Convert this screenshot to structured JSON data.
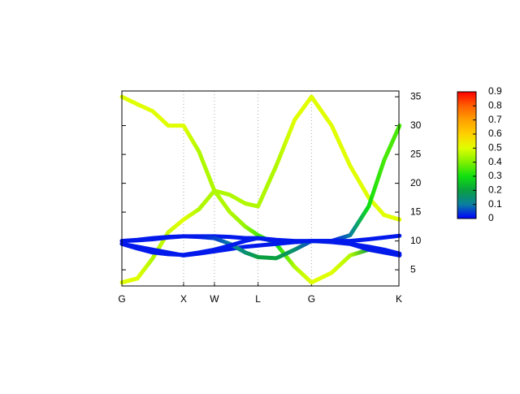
{
  "chart_data": {
    "type": "line",
    "x": [
      0,
      0.25,
      0.5,
      0.75,
      1,
      1.25,
      1.5,
      1.75,
      2,
      2.207,
      2.5,
      2.8,
      3.073,
      3.4,
      3.7,
      4,
      4.25,
      4.5
    ],
    "series": [
      {
        "values": [
          35,
          33.7,
          32.5,
          30,
          30,
          25.5,
          18.7,
          15,
          12.5,
          11,
          9.5,
          5.5,
          2.8,
          4.5,
          7.5,
          8.5,
          8,
          7.6
        ],
        "weights": [
          0.5,
          0.5,
          0.5,
          0.5,
          0.5,
          0.45,
          0.45,
          0.45,
          0.42,
          0.35,
          0.3,
          0.45,
          0.5,
          0.5,
          0.45,
          0.2,
          0.05,
          0.02
        ]
      },
      {
        "values": [
          2.8,
          3.5,
          7,
          11.5,
          13.7,
          15.5,
          18.7,
          18,
          16.5,
          16,
          23,
          31,
          35,
          30,
          23,
          17.5,
          14.5,
          13.7
        ],
        "weights": [
          0.5,
          0.5,
          0.45,
          0.48,
          0.5,
          0.45,
          0.45,
          0.45,
          0.45,
          0.45,
          0.45,
          0.5,
          0.5,
          0.5,
          0.5,
          0.5,
          0.5,
          0.5
        ]
      },
      {
        "values": [
          10,
          10.2,
          10.5,
          10.7,
          10.8,
          10.8,
          10.8,
          10.7,
          10.5,
          10.5,
          10,
          9.8,
          10,
          10,
          11,
          16,
          24,
          30
        ],
        "weights": [
          0.02,
          0.02,
          0.02,
          0.02,
          0.02,
          0.02,
          0.02,
          0.02,
          0.02,
          0.02,
          0.02,
          0.02,
          0.02,
          0.02,
          0.1,
          0.3,
          0.35,
          0.35
        ]
      },
      {
        "values": [
          9.5,
          9,
          8.5,
          8,
          7.5,
          7.8,
          8.2,
          8.6,
          9,
          9.2,
          9.5,
          9.8,
          10,
          9.9,
          9.5,
          8.5,
          8,
          7.5
        ],
        "weights": [
          0.02,
          0.02,
          0.02,
          0.02,
          0.02,
          0.02,
          0.02,
          0.02,
          0.02,
          0.02,
          0.02,
          0.02,
          0.02,
          0.02,
          0.02,
          0.02,
          0.02,
          0.02
        ]
      },
      {
        "values": [
          10,
          10.1,
          10.3,
          10.6,
          10.8,
          10.7,
          10.5,
          9.5,
          8,
          7.2,
          7,
          8.5,
          10,
          9.8,
          9.5,
          9,
          8.5,
          7.8
        ],
        "weights": [
          0.02,
          0.02,
          0.02,
          0.02,
          0.02,
          0.02,
          0.05,
          0.1,
          0.15,
          0.2,
          0.2,
          0.15,
          0.05,
          0.02,
          0.02,
          0.02,
          0.02,
          0.02
        ]
      },
      {
        "values": [
          9.5,
          8.7,
          8,
          7.7,
          7.6,
          8,
          8.5,
          9.2,
          10,
          10.5,
          10.2,
          10,
          10,
          10,
          10,
          10.3,
          10.6,
          10.9
        ],
        "weights": [
          0.02,
          0.02,
          0.02,
          0.02,
          0.02,
          0.02,
          0.02,
          0.02,
          0.02,
          0.02,
          0.02,
          0.02,
          0.02,
          0.02,
          0.02,
          0.02,
          0.02,
          0.02
        ]
      }
    ],
    "xlim": [
      0,
      4.49
    ],
    "xticks": [
      {
        "value": 0,
        "label": "G"
      },
      {
        "value": 1,
        "label": "X"
      },
      {
        "value": 1.5,
        "label": "W"
      },
      {
        "value": 2.207,
        "label": "L"
      },
      {
        "value": 3.073,
        "label": "G"
      },
      {
        "value": 4.49,
        "label": "K"
      }
    ],
    "ylim": [
      2.2,
      36
    ],
    "yticks": [
      5,
      10,
      15,
      20,
      25,
      30,
      35
    ],
    "cblim": [
      0,
      0.9
    ],
    "cbticks": [
      0,
      0.1,
      0.2,
      0.3,
      0.4,
      0.5,
      0.6,
      0.7,
      0.8,
      0.9
    ],
    "palette": [
      "#0000ff",
      "#0a7fa0",
      "#0aa040",
      "#10e010",
      "#80f000",
      "#e0ff00",
      "#ffd000",
      "#ffa000",
      "#ff6000",
      "#ff0000"
    ],
    "grid": "x"
  }
}
